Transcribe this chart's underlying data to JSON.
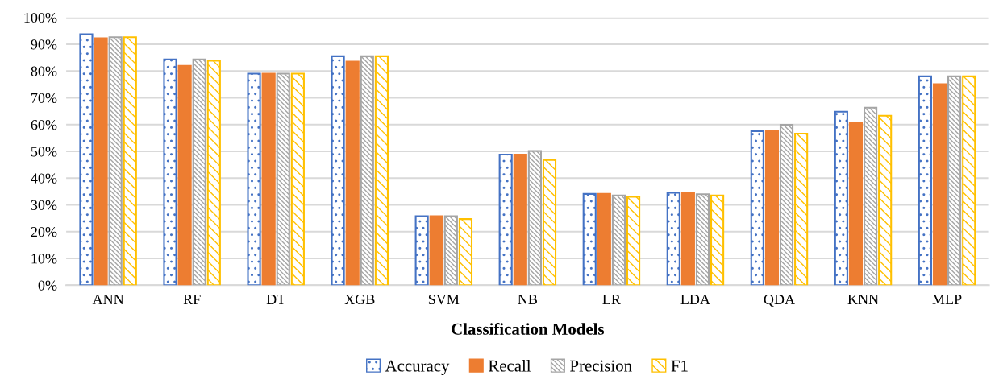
{
  "chart_data": {
    "type": "bar",
    "xlabel": "Classification Models",
    "categories": [
      "ANN",
      "RF",
      "DT",
      "XGB",
      "SVM",
      "NB",
      "LR",
      "LDA",
      "QDA",
      "KNN",
      "MLP"
    ],
    "series": [
      {
        "name": "Accuracy",
        "color": "#4472c4",
        "values": [
          93.7,
          84.3,
          79.0,
          85.5,
          25.8,
          48.8,
          34.1,
          34.5,
          57.5,
          64.8,
          78.0
        ]
      },
      {
        "name": "Recall",
        "color": "#ed7d31",
        "values": [
          92.2,
          81.9,
          79.0,
          83.5,
          25.8,
          48.8,
          34.1,
          34.5,
          57.5,
          60.5,
          75.1
        ]
      },
      {
        "name": "Precision",
        "color": "#a5a5a5",
        "values": [
          92.6,
          84.3,
          79.0,
          85.5,
          25.8,
          50.1,
          33.5,
          34.0,
          59.9,
          66.3,
          78.0
        ]
      },
      {
        "name": "F1",
        "color": "#ffc000",
        "values": [
          92.6,
          83.8,
          79.0,
          85.5,
          24.7,
          46.8,
          33.0,
          33.5,
          56.6,
          63.3,
          78.0
        ]
      }
    ],
    "ylim": [
      0,
      100
    ],
    "yticks": [
      {
        "value": 0,
        "label": "0%"
      },
      {
        "value": 10,
        "label": "10%"
      },
      {
        "value": 20,
        "label": "20%"
      },
      {
        "value": 30,
        "label": "30%"
      },
      {
        "value": 40,
        "label": "40%"
      },
      {
        "value": 50,
        "label": "50%"
      },
      {
        "value": 60,
        "label": "60%"
      },
      {
        "value": 70,
        "label": "70%"
      },
      {
        "value": 80,
        "label": "80%"
      },
      {
        "value": 90,
        "label": "90%"
      },
      {
        "value": 100,
        "label": "100%"
      }
    ],
    "grid": "y",
    "legend": "bottom"
  }
}
